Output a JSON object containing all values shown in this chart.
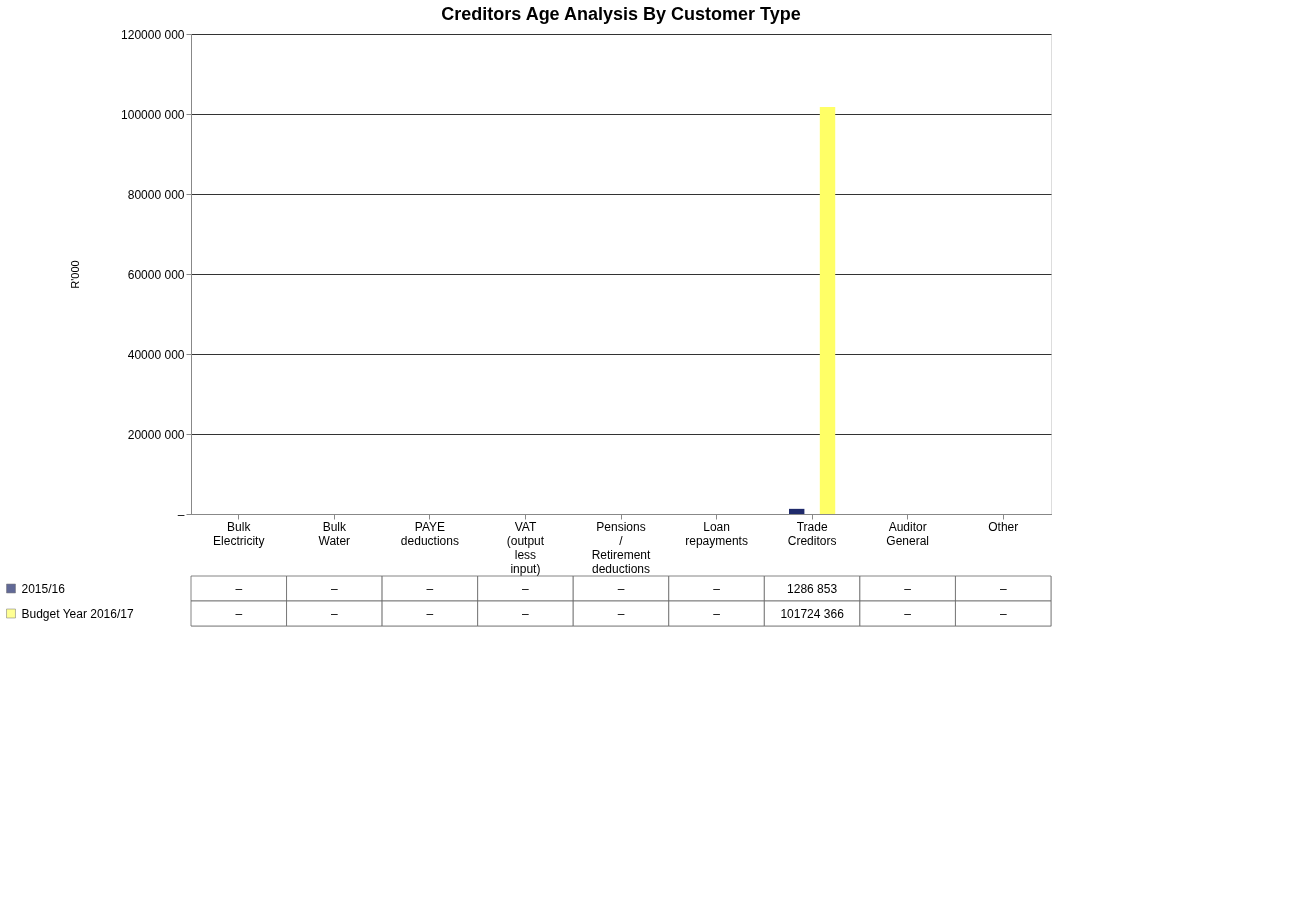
{
  "chart_data": {
    "type": "bar",
    "title": "Creditors Age Analysis By Customer Type",
    "ylabel": "R'000",
    "categories": [
      "Bulk Electricity",
      "Bulk Water",
      "PAYE deductions",
      "VAT (output less input)",
      "Pensions / Retirement deductions",
      "Loan repayments",
      "Trade Creditors",
      "Auditor General",
      "Other"
    ],
    "series": [
      {
        "name": "2015/16",
        "color": "#1f2a6b",
        "values": [
          0,
          0,
          0,
          0,
          0,
          0,
          1286853,
          0,
          0
        ],
        "value_labels": [
          "–",
          "–",
          "–",
          "–",
          "–",
          "–",
          "1286 853",
          "–",
          "–"
        ]
      },
      {
        "name": "Budget Year 2016/17",
        "color": "#ffff66",
        "values": [
          0,
          0,
          0,
          0,
          0,
          0,
          101724366,
          0,
          0
        ],
        "value_labels": [
          "–",
          "–",
          "–",
          "–",
          "–",
          "–",
          "101724 366",
          "–",
          "–"
        ]
      }
    ],
    "ylim": [
      0,
      120000000
    ],
    "yticks": [
      {
        "value": 0,
        "label": "–"
      },
      {
        "value": 20000000,
        "label": "20000 000"
      },
      {
        "value": 40000000,
        "label": "40000 000"
      },
      {
        "value": 60000000,
        "label": "60000 000"
      },
      {
        "value": 80000000,
        "label": "80000 000"
      },
      {
        "value": 100000000,
        "label": "100000 000"
      },
      {
        "value": 120000000,
        "label": "120000 000"
      }
    ],
    "grid": "y",
    "legend": "bottom"
  }
}
